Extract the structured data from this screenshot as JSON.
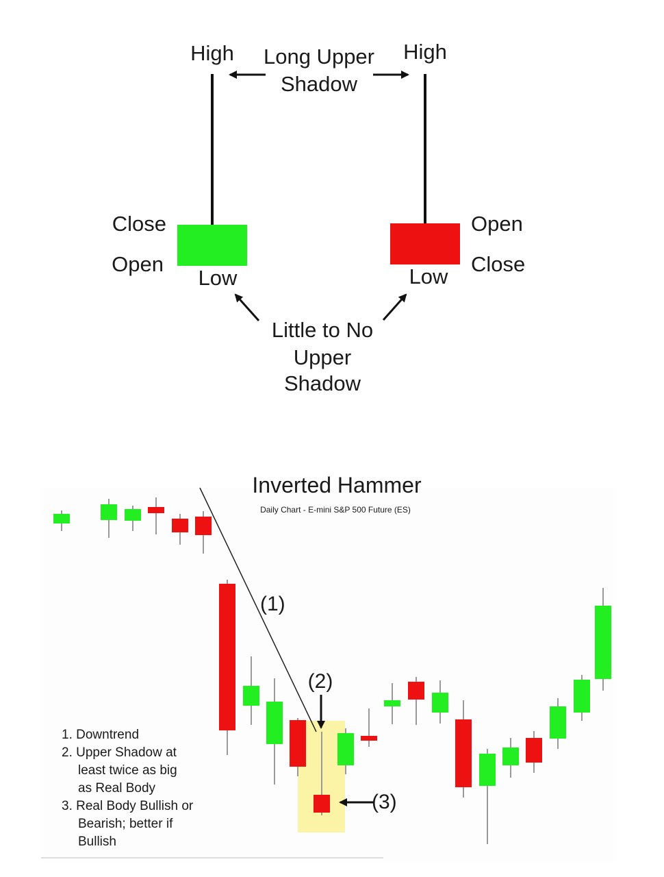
{
  "top_diagram": {
    "left_candle": {
      "high_label": "High",
      "top_label": "Close",
      "bottom_label": "Open",
      "low_label": "Low",
      "body_color": "#22ee22"
    },
    "right_candle": {
      "high_label": "High",
      "top_label": "Open",
      "bottom_label": "Close",
      "low_label": "Low",
      "body_color": "#ee1111"
    },
    "upper_shadow_note": [
      "Long Upper",
      "Shadow"
    ],
    "lower_shadow_note": [
      "Little to No",
      "Upper",
      "Shadow"
    ]
  },
  "bottom_chart": {
    "title": "Inverted Hammer",
    "subtitle": "Daily Chart - E-mini S&P 500 Future (ES)",
    "callouts": {
      "trend": "(1)",
      "shadow": "(2)",
      "body": "(3)"
    },
    "notes": [
      [
        "1. Downtrend"
      ],
      [
        "2. Upper Shadow at",
        "least twice as big",
        "as Real Body"
      ],
      [
        "3. Real Body Bullish or",
        "Bearish; better if",
        "Bullish"
      ]
    ],
    "colors": {
      "bullish": "#22ee22",
      "bearish": "#ee1111",
      "highlight": "#fbf3a6"
    }
  }
}
